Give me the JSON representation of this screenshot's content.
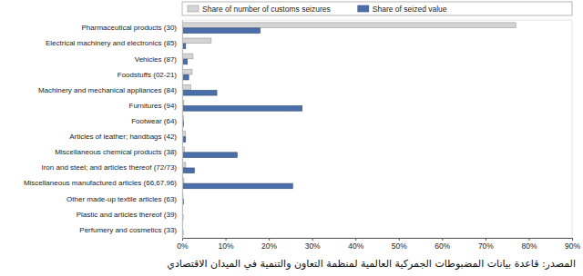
{
  "chart_data": {
    "type": "bar",
    "orientation": "horizontal",
    "categories": [
      "Pharmaceutical products (30)",
      "Electrical machinery and electronics (85)",
      "Vehicles (87)",
      "Foodstuffs (02-21)",
      "Machinery and mechanical appliances (84)",
      "Furnitures (94)",
      "Footwear (64)",
      "Articles of leather; handbags (42)",
      "Miscellaneous chemical products (38)",
      "Iron and steel; and articles thereof (72/73)",
      "Miscellaneous manufactured articles (66,67,96)",
      "Other made-up textile articles (63)",
      "Plastic and articles thereof (39)",
      "Perfumery and cosmetics (33)"
    ],
    "series": [
      {
        "name": "Share of number of customs seizures",
        "color": "#d4d4d4",
        "values": [
          77,
          6.7,
          2.5,
          2.3,
          2,
          0.4,
          0.3,
          0.7,
          0.5,
          0.8,
          0.4,
          0.2,
          0.1,
          0.1
        ]
      },
      {
        "name": "Share of seized value",
        "color": "#4a6ea9",
        "values": [
          18,
          0.8,
          1.2,
          1.5,
          8,
          27.7,
          0.3,
          0.8,
          12.7,
          2.8,
          25.5,
          0.3,
          0.2,
          0.2
        ]
      }
    ],
    "xlim": [
      0,
      90
    ],
    "xticks": [
      {
        "value": 0,
        "label": "0%"
      },
      {
        "value": 10,
        "label": "10%"
      },
      {
        "value": 20,
        "label": "20%"
      },
      {
        "value": 30,
        "label": "30%"
      },
      {
        "value": 40,
        "label": "40%"
      },
      {
        "value": 50,
        "label": "50%"
      },
      {
        "value": 60,
        "label": "60%"
      },
      {
        "value": 70,
        "label": "70%"
      },
      {
        "value": 80,
        "label": "80%"
      },
      {
        "value": 90,
        "label": "90%"
      }
    ],
    "legend": "top",
    "grid": false,
    "annotations": [
      "المصدر: قاعدة بيانات المضبوطات الجمركية العالمية لمنظمة التعاون والتنمية في الميدان الاقتصادي"
    ]
  }
}
